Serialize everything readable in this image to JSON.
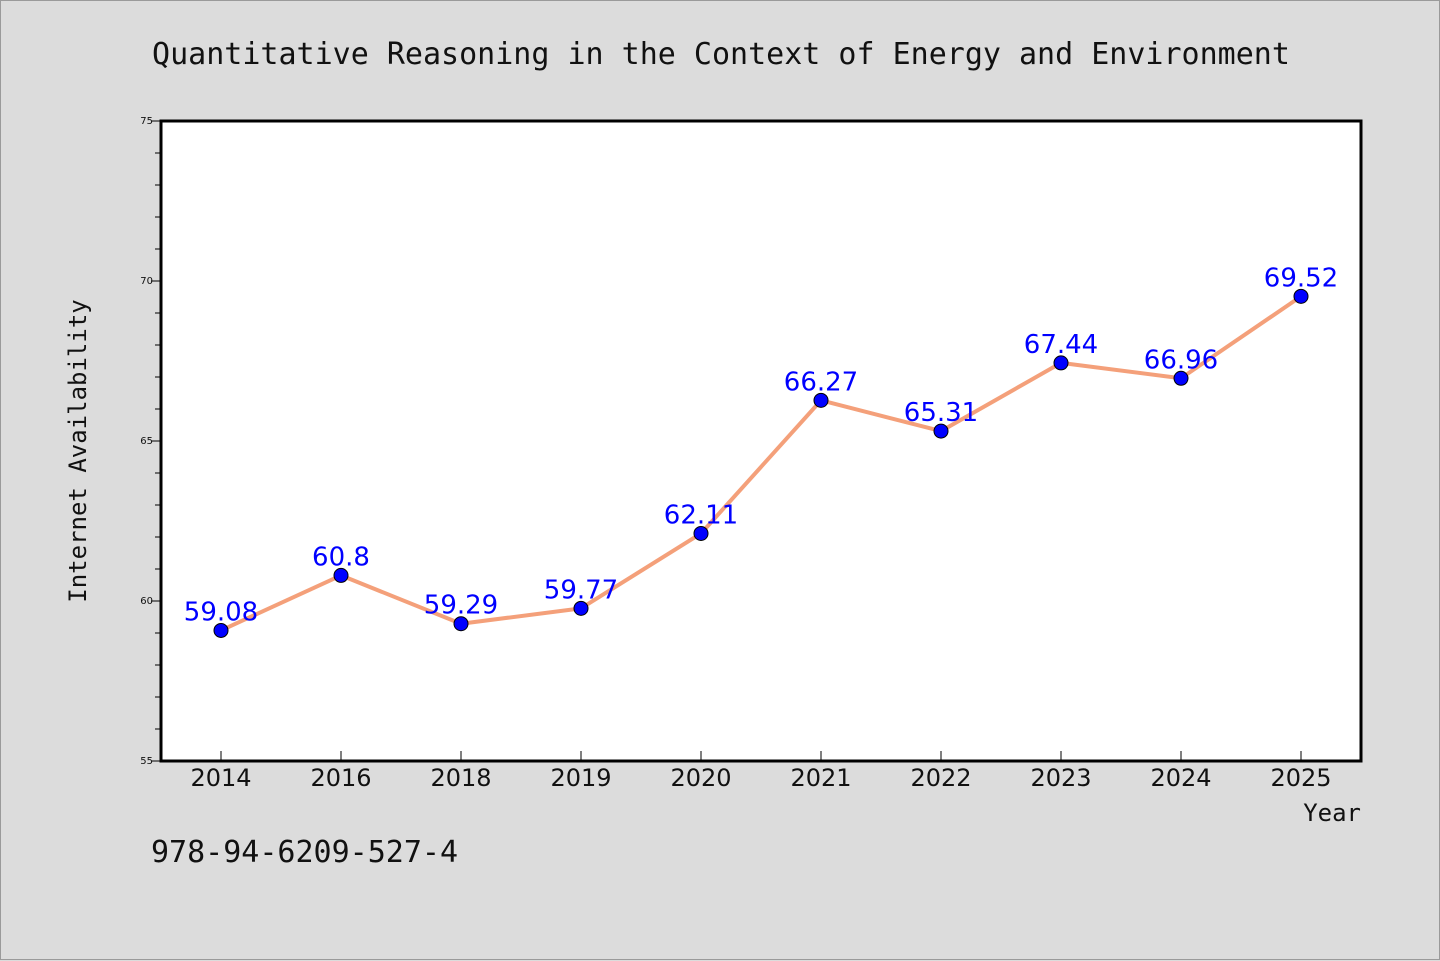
{
  "identifier": "978-94-6209-527-4",
  "colors": {
    "background": "#dcdcdc",
    "plot_bg": "#ffffff",
    "line": "#f4a07a",
    "marker": "#0000ff",
    "data_label": "#0000ff"
  },
  "chart_data": {
    "type": "line",
    "title": "Quantitative Reasoning in the Context of Energy and Environment",
    "xlabel": "Year",
    "ylabel": "Internet Availability",
    "categories": [
      "2014",
      "2016",
      "2018",
      "2019",
      "2020",
      "2021",
      "2022",
      "2023",
      "2024",
      "2025"
    ],
    "series": [
      {
        "values": [
          59.08,
          60.8,
          59.29,
          59.77,
          62.11,
          66.27,
          65.31,
          67.44,
          66.96,
          69.52
        ],
        "labels": [
          "59.08",
          "60.8",
          "59.29",
          "59.77",
          "62.11",
          "66.27",
          "65.31",
          "67.44",
          "66.96",
          "69.52"
        ]
      }
    ],
    "ylim": [
      55,
      75
    ],
    "yticks": [
      "55",
      "60",
      "65",
      "70",
      "75"
    ],
    "grid": false,
    "legend": "none"
  }
}
